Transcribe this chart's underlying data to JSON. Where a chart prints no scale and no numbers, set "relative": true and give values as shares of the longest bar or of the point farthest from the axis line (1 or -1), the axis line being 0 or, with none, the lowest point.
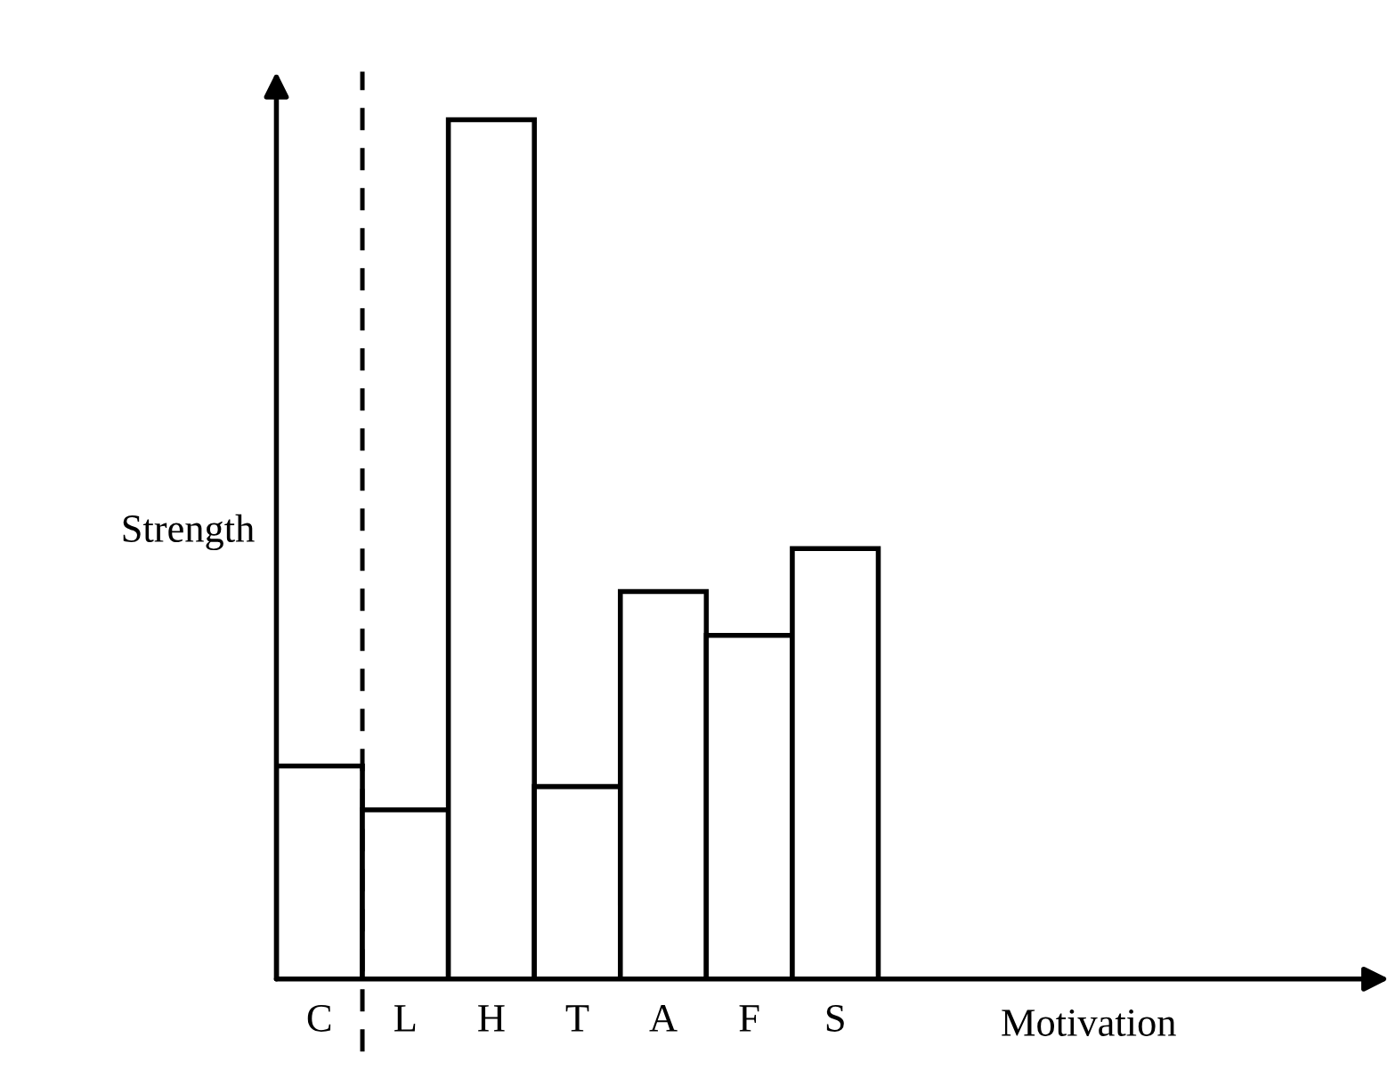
{
  "chart_data": {
    "type": "bar",
    "relative": true,
    "xlabel": "Motivation",
    "ylabel": "Strength",
    "categories": [
      "C",
      "L",
      "H",
      "T",
      "A",
      "F",
      "S"
    ],
    "values": [
      0.248,
      0.197,
      1.0,
      0.224,
      0.451,
      0.4,
      0.501
    ],
    "color": "#ffffff",
    "grid": false,
    "legend": false
  }
}
